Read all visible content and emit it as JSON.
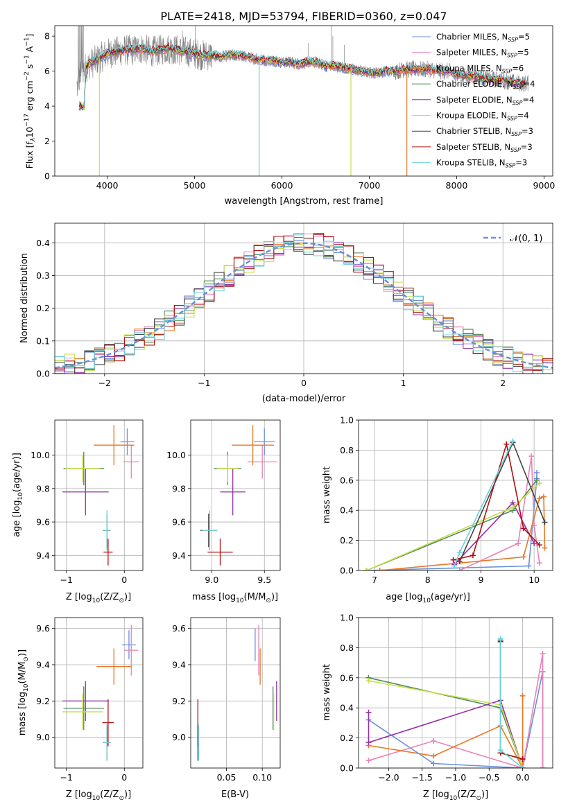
{
  "title": "PLATE=2418, MJD=53794, FIBERID=0360, z=0.047",
  "legend_entries": [
    {
      "label": "Chabrier MILES, N",
      "sub": "SSP",
      "suffix": "=5",
      "color": "#6a8fdc"
    },
    {
      "label": "Salpeter MILES, N",
      "sub": "SSP",
      "suffix": "=5",
      "color": "#e883b7"
    },
    {
      "label": "Kroupa MILES, N",
      "sub": "SSP",
      "suffix": "=6",
      "color": "#e87625"
    },
    {
      "label": "Chabrier ELODIE, N",
      "sub": "SSP",
      "suffix": "=4",
      "color": "#4f8a5a"
    },
    {
      "label": "Salpeter ELODIE, N",
      "sub": "SSP",
      "suffix": "=4",
      "color": "#9530a8"
    },
    {
      "label": "Kroupa ELODIE, N",
      "sub": "SSP",
      "suffix": "=4",
      "color": "#c9df4a"
    },
    {
      "label": "Chabrier STELIB, N",
      "sub": "SSP",
      "suffix": "=3",
      "color": "#444444"
    },
    {
      "label": "Salpeter STELIB, N",
      "sub": "SSP",
      "suffix": "=3",
      "color": "#b01010"
    },
    {
      "label": "Kroupa STELIB, N",
      "sub": "SSP",
      "suffix": "=3",
      "color": "#6fd0d8"
    }
  ],
  "hist_legend": "𝒩(0, 1)",
  "chart_data": [
    {
      "id": "spectrum",
      "type": "line",
      "xlabel": "wavelength [Angstrom, rest frame]",
      "ylabel": "Flux [f",
      "ylabel_sub": "λ",
      "ylabel_rest": "10",
      "ylabel_sup1": "−17",
      "ylabel_mid": " erg cm",
      "ylabel_sup2": "−2",
      "ylabel_mid2": " s",
      "ylabel_sup3": "−1",
      "ylabel_end": " A",
      "ylabel_sup4": "−1",
      "ylabel_close": "]",
      "xlim": [
        3400,
        9100
      ],
      "ylim": [
        0,
        8.6
      ],
      "xticks": [
        4000,
        5000,
        6000,
        7000,
        8000,
        9000
      ],
      "yticks": [
        0,
        2,
        4,
        6,
        8
      ],
      "data_color": "#808080",
      "observed": {
        "x": [
          3650,
          3700,
          3800,
          3900,
          4000,
          4100,
          4200,
          4300,
          4400,
          4500,
          4600,
          4700,
          4800,
          4900,
          5000,
          5100,
          5200,
          5300,
          5400,
          5500,
          5600,
          5700,
          5800,
          5900,
          6000,
          6100,
          6200,
          6300,
          6400,
          6500,
          6600,
          6700,
          6800,
          6900,
          7000,
          7100,
          7200,
          7300,
          7400,
          7500,
          7600,
          7700,
          7800,
          7900,
          8000,
          8100,
          8200,
          8300,
          8400,
          8500,
          8600,
          8700,
          8800
        ],
        "y": [
          5.0,
          6.0,
          6.4,
          6.7,
          7.0,
          7.1,
          7.2,
          7.2,
          7.3,
          7.1,
          7.2,
          7.3,
          7.2,
          7.1,
          7.0,
          6.9,
          6.9,
          6.8,
          6.9,
          6.9,
          6.8,
          6.7,
          6.6,
          6.6,
          6.5,
          6.5,
          6.4,
          6.5,
          6.5,
          6.3,
          6.3,
          6.2,
          6.1,
          6.0,
          5.9,
          5.9,
          6.0,
          6.0,
          6.1,
          6.1,
          6.1,
          6.1,
          6.0,
          6.0,
          5.8,
          5.7,
          5.7,
          5.6,
          5.5,
          5.5,
          5.4,
          5.3,
          5.3
        ]
      }
    },
    {
      "id": "residuals",
      "type": "histogram",
      "xlabel": "(data-model)/error",
      "ylabel": "Normed distribution",
      "xlim": [
        -2.5,
        2.5
      ],
      "ylim": [
        0,
        0.46
      ],
      "xticks": [
        -2,
        -1,
        0,
        1,
        2
      ],
      "yticks": [
        0.0,
        0.1,
        0.2,
        0.3,
        0.4
      ],
      "bin_width": 0.1,
      "bin_start": -2.5,
      "reference": "standard normal N(0,1)"
    },
    {
      "id": "age_vs_Z",
      "type": "errorbar",
      "xlabel": "Z [log",
      "xlabel_sub": "10",
      "xlabel_rest": "(Z/Z",
      "xlabel_sub2": "⊙",
      "xlabel_close": ")]",
      "ylabel": "age  [log",
      "ylabel_sub": "10",
      "ylabel_rest": "(age/yr)]",
      "xlim": [
        -1.2,
        0.32
      ],
      "ylim": [
        9.31,
        10.21
      ],
      "xticks": [
        -1,
        0
      ],
      "yticks": [
        9.4,
        9.6,
        9.8,
        10.0
      ],
      "points": [
        {
          "x": 0.05,
          "y": 10.08,
          "xerr": 0.12,
          "yerr": 0.08
        },
        {
          "x": 0.12,
          "y": 9.96,
          "xerr": 0.14,
          "yerr": 0.1
        },
        {
          "x": -0.18,
          "y": 10.06,
          "xerr": 0.35,
          "yerr": 0.12
        },
        {
          "x": -0.7,
          "y": 9.92,
          "xerr": 0.35,
          "yerr": 0.1
        },
        {
          "x": -0.67,
          "y": 9.78,
          "xerr": 0.4,
          "yerr": 0.14
        },
        {
          "x": -0.72,
          "y": 9.92,
          "xerr": 0.3,
          "yerr": 0.08
        },
        {
          "x": -0.3,
          "y": 9.55,
          "xerr": 0.06,
          "yerr": 0.1
        },
        {
          "x": -0.28,
          "y": 9.42,
          "xerr": 0.08,
          "yerr": 0.08
        },
        {
          "x": -0.3,
          "y": 9.55,
          "xerr": 0.05,
          "yerr": 0.12
        }
      ]
    },
    {
      "id": "age_vs_mass",
      "type": "errorbar",
      "xlabel": "mass [log",
      "xlabel_sub": "10",
      "xlabel_rest": "(M/M",
      "xlabel_sub2": "⊙",
      "xlabel_close": ")]",
      "xlim": [
        8.8,
        9.65
      ],
      "ylim": [
        9.31,
        10.21
      ],
      "xticks": [
        9.0,
        9.5
      ],
      "yticks": [
        9.4,
        9.6,
        9.8,
        10.0
      ],
      "points": [
        {
          "x": 9.5,
          "y": 10.08,
          "xerr": 0.1,
          "yerr": 0.08
        },
        {
          "x": 9.48,
          "y": 9.96,
          "xerr": 0.14,
          "yerr": 0.1
        },
        {
          "x": 9.39,
          "y": 10.06,
          "xerr": 0.2,
          "yerr": 0.12
        },
        {
          "x": 9.15,
          "y": 9.92,
          "xerr": 0.13,
          "yerr": 0.1
        },
        {
          "x": 9.2,
          "y": 9.78,
          "xerr": 0.12,
          "yerr": 0.14
        },
        {
          "x": 9.15,
          "y": 9.92,
          "xerr": 0.1,
          "yerr": 0.08
        },
        {
          "x": 8.97,
          "y": 9.55,
          "xerr": 0.08,
          "yerr": 0.1
        },
        {
          "x": 9.08,
          "y": 9.42,
          "xerr": 0.12,
          "yerr": 0.08
        },
        {
          "x": 8.98,
          "y": 9.55,
          "xerr": 0.07,
          "yerr": 0.12
        }
      ]
    },
    {
      "id": "weight_vs_age",
      "type": "line",
      "xlabel": "age  [log",
      "xlabel_sub": "10",
      "xlabel_rest": "(age/yr)]",
      "ylabel": "mass weight",
      "xlim": [
        6.7,
        10.35
      ],
      "ylim": [
        0,
        1.0
      ],
      "xticks": [
        7,
        8,
        9,
        10
      ],
      "yticks": [
        0.0,
        0.2,
        0.4,
        0.6,
        0.8,
        1.0
      ],
      "series": [
        {
          "x": [
            6.85,
            9.9,
            10.05,
            10.05
          ],
          "y": [
            0.0,
            0.03,
            0.61,
            0.65
          ]
        },
        {
          "x": [
            8.6,
            9.7,
            9.95,
            10.0,
            10.1
          ],
          "y": [
            0.0,
            0.18,
            0.76,
            0.3,
            0.05
          ]
        },
        {
          "x": [
            7.1,
            9.8,
            10.1,
            10.18,
            10.2
          ],
          "y": [
            0.0,
            0.09,
            0.48,
            0.49,
            0.15
          ]
        },
        {
          "x": [
            6.85,
            9.6,
            10.05
          ],
          "y": [
            0.0,
            0.4,
            0.6
          ]
        },
        {
          "x": [
            8.5,
            9.6,
            10.0
          ],
          "y": [
            0.04,
            0.45,
            0.18
          ]
        },
        {
          "x": [
            6.85,
            9.6,
            10.1
          ],
          "y": [
            0.0,
            0.42,
            0.58
          ]
        },
        {
          "x": [
            8.6,
            9.6,
            10.2
          ],
          "y": [
            0.06,
            0.85,
            0.32
          ]
        },
        {
          "x": [
            8.48,
            8.85,
            9.48,
            9.8,
            10.1
          ],
          "y": [
            0.07,
            0.1,
            0.84,
            0.28,
            0.17
          ]
        },
        {
          "x": [
            8.5,
            8.6,
            9.6
          ],
          "y": [
            0.03,
            0.12,
            0.86
          ]
        }
      ]
    },
    {
      "id": "mass_vs_Z",
      "type": "errorbar",
      "xlabel": "Z [log",
      "xlabel_sub": "10",
      "xlabel_rest": "(Z/Z",
      "xlabel_sub2": "⊙",
      "xlabel_close": ")]",
      "ylabel": "mass [log",
      "ylabel_sub": "10",
      "ylabel_rest": "(M/M",
      "ylabel_sub2": "⊙",
      "ylabel_close": ")]",
      "xlim": [
        -1.2,
        0.32
      ],
      "ylim": [
        8.83,
        9.66
      ],
      "xticks": [
        -1,
        0
      ],
      "yticks": [
        9.0,
        9.2,
        9.4,
        9.6
      ],
      "points": [
        {
          "x": 0.08,
          "y": 9.51,
          "xerr": 0.12,
          "yerr": 0.08
        },
        {
          "x": 0.12,
          "y": 9.48,
          "xerr": 0.12,
          "yerr": 0.14
        },
        {
          "x": -0.18,
          "y": 9.39,
          "xerr": 0.3,
          "yerr": 0.1
        },
        {
          "x": -0.7,
          "y": 9.16,
          "xerr": 0.35,
          "yerr": 0.12
        },
        {
          "x": -0.67,
          "y": 9.2,
          "xerr": 0.4,
          "yerr": 0.11
        },
        {
          "x": -0.72,
          "y": 9.14,
          "xerr": 0.35,
          "yerr": 0.1
        },
        {
          "x": -0.3,
          "y": 8.97,
          "xerr": 0.06,
          "yerr": 0.1
        },
        {
          "x": -0.28,
          "y": 9.08,
          "xerr": 0.1,
          "yerr": 0.13
        },
        {
          "x": -0.3,
          "y": 8.97,
          "xerr": 0.05,
          "yerr": 0.1
        }
      ]
    },
    {
      "id": "mass_vs_EBV",
      "type": "errorbar",
      "xlabel": "E(B-V)",
      "xlim": [
        0.0,
        0.125
      ],
      "ylim": [
        8.83,
        9.66
      ],
      "xticks": [
        0.05,
        0.1
      ],
      "yticks": [
        9.0,
        9.2,
        9.4,
        9.6
      ],
      "points": [
        {
          "x": 0.09,
          "y": 9.51,
          "xerr": 0,
          "yerr": 0.09
        },
        {
          "x": 0.095,
          "y": 9.48,
          "xerr": 0,
          "yerr": 0.14
        },
        {
          "x": 0.097,
          "y": 9.39,
          "xerr": 0,
          "yerr": 0.1
        },
        {
          "x": 0.115,
          "y": 9.16,
          "xerr": 0,
          "yerr": 0.12
        },
        {
          "x": 0.12,
          "y": 9.2,
          "xerr": 0,
          "yerr": 0.11
        },
        {
          "x": 0.116,
          "y": 9.14,
          "xerr": 0,
          "yerr": 0.1
        },
        {
          "x": 0.01,
          "y": 8.97,
          "xerr": 0,
          "yerr": 0.1
        },
        {
          "x": 0.01,
          "y": 9.08,
          "xerr": 0,
          "yerr": 0.13
        },
        {
          "x": 0.011,
          "y": 8.97,
          "xerr": 0,
          "yerr": 0.1
        }
      ]
    },
    {
      "id": "weight_vs_Z",
      "type": "line",
      "xlabel": "Z [log",
      "xlabel_sub": "10",
      "xlabel_rest": "(Z/Z",
      "xlabel_sub2": "⊙",
      "xlabel_close": ")]",
      "ylabel": "mass weight",
      "xlim": [
        -2.45,
        0.45
      ],
      "ylim": [
        0,
        1.0
      ],
      "xticks": [
        -2.0,
        -1.5,
        -1.0,
        -0.5,
        0.0
      ],
      "yticks": [
        0.0,
        0.2,
        0.4,
        0.6,
        0.8,
        1.0
      ],
      "series": [
        {
          "x": [
            -2.3,
            -1.33,
            0.0,
            0.3,
            0.3
          ],
          "y": [
            0.32,
            0.03,
            0.0,
            0.64,
            0.0
          ]
        },
        {
          "x": [
            -2.3,
            -1.33,
            0.0,
            0.3,
            0.3
          ],
          "y": [
            0.05,
            0.18,
            0.0,
            0.76,
            0.0
          ]
        },
        {
          "x": [
            -2.3,
            -1.33,
            -0.33,
            0.0,
            0.0
          ],
          "y": [
            0.15,
            0.08,
            0.28,
            0.0,
            0.48
          ]
        },
        {
          "x": [
            -2.3,
            -0.33,
            0.0
          ],
          "y": [
            0.6,
            0.4,
            0.0
          ]
        },
        {
          "x": [
            -2.3,
            -2.3,
            -0.33,
            0.0
          ],
          "y": [
            0.37,
            0.17,
            0.45,
            0.0
          ]
        },
        {
          "x": [
            -2.3,
            -0.33,
            0.0
          ],
          "y": [
            0.58,
            0.42,
            0.0
          ]
        },
        {
          "x": [
            -0.33,
            -0.33,
            0.0
          ],
          "y": [
            0.85,
            0.1,
            0.06
          ]
        },
        {
          "x": [
            -0.33,
            -0.33,
            0.0
          ],
          "y": [
            0.84,
            0.1,
            0.06
          ]
        },
        {
          "x": [
            -0.33,
            -0.33,
            0.0
          ],
          "y": [
            0.86,
            0.12,
            0.0
          ]
        }
      ]
    }
  ]
}
